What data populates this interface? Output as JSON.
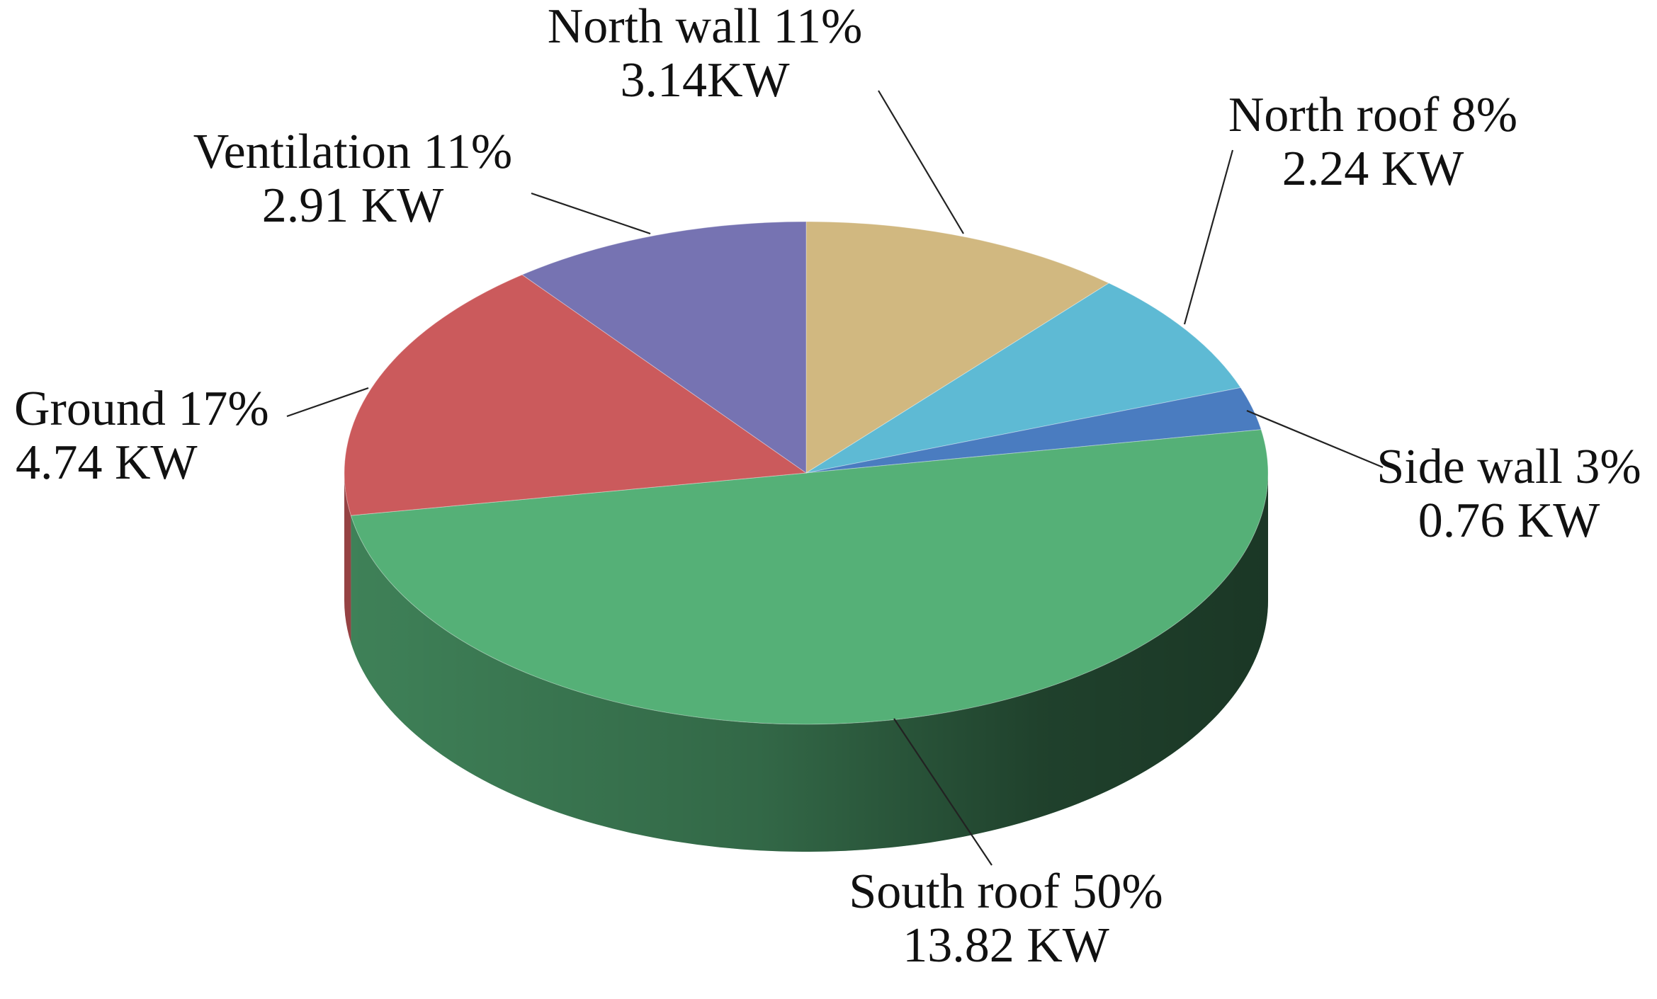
{
  "chart_data": {
    "type": "pie",
    "style": "3d",
    "slices": [
      {
        "name": "North wall",
        "percent_label": "11%",
        "value": 3.14,
        "value_label": "3.14KW",
        "color": "#D1B880"
      },
      {
        "name": "North roof",
        "percent_label": "8%",
        "value": 2.24,
        "value_label": "2.24 KW",
        "color": "#5EBAD4"
      },
      {
        "name": "Side wall",
        "percent_label": "3%",
        "value": 0.76,
        "value_label": "0.76 KW",
        "color": "#4A7CC0"
      },
      {
        "name": "South roof",
        "percent_label": "50%",
        "value": 13.82,
        "value_label": "13.82 KW",
        "color": "#55B077"
      },
      {
        "name": "Ground",
        "percent_label": "17%",
        "value": 4.74,
        "value_label": "4.74 KW",
        "color": "#CB5A5C"
      },
      {
        "name": "Ventilation",
        "percent_label": "11%",
        "value": 2.91,
        "value_label": "2.91 KW",
        "color": "#7673B2"
      }
    ]
  }
}
